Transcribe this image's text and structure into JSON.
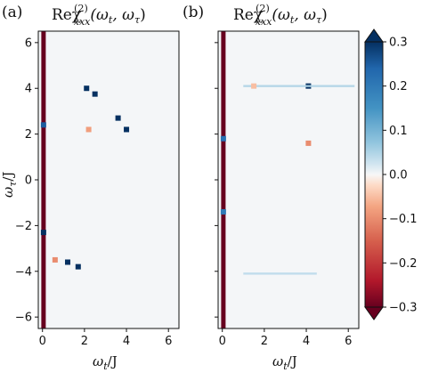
{
  "figure": {
    "panels": [
      {
        "tag": "(a)",
        "title": "Reχ",
        "title_sup": "(2)",
        "title_sub": "xxx",
        "title_args": "(ω",
        "title_args2": "t",
        "title_args3": ", ω",
        "title_args4": "τ",
        "title_args5": ")"
      },
      {
        "tag": "(b)",
        "title": "Reχ",
        "title_sup": "(2)",
        "title_sub": "xxx",
        "title_args": "(ω",
        "title_args2": "t",
        "title_args3": ", ω",
        "title_args4": "τ",
        "title_args5": ")"
      }
    ],
    "xlabel_main": "ω",
    "xlabel_sub": "t",
    "xlabel_den": "/J",
    "ylabel_main": "ω",
    "ylabel_sub": "τ",
    "ylabel_den": "/J",
    "x_ticks": [
      "0",
      "2",
      "4",
      "6"
    ],
    "y_ticks": [
      "6",
      "4",
      "2",
      "0",
      "−2",
      "−4",
      "−6"
    ],
    "colorbar_ticks": [
      "0.3",
      "0.2",
      "0.1",
      "0.0",
      "−0.1",
      "−0.2",
      "−0.3"
    ]
  },
  "chart_data": {
    "type": "heatmap",
    "colormap": "RdBu_r",
    "xlim": [
      -0.2,
      6.5
    ],
    "ylim": [
      -6.5,
      6.5
    ],
    "clim": [
      -0.3,
      0.3
    ],
    "colorbar": {
      "ticks": [
        0.3,
        0.2,
        0.1,
        0.0,
        -0.1,
        -0.2,
        -0.3
      ],
      "extend": "both"
    },
    "panels": [
      {
        "label": "(a)",
        "features": [
          {
            "kind": "column",
            "x": 0.05,
            "y_range": [
              -6.5,
              6.5
            ],
            "value": -0.3
          },
          {
            "kind": "blob",
            "x": 0.05,
            "y": 2.4,
            "value": 0.25
          },
          {
            "kind": "blob",
            "x": 0.05,
            "y": -2.3,
            "value": 0.3
          },
          {
            "kind": "blob",
            "x": 2.1,
            "y": 4.0,
            "value": 0.3
          },
          {
            "kind": "blob",
            "x": 2.5,
            "y": 3.75,
            "value": 0.3
          },
          {
            "kind": "blob",
            "x": 3.6,
            "y": 2.7,
            "value": 0.3
          },
          {
            "kind": "blob",
            "x": 4.0,
            "y": 2.2,
            "value": 0.3
          },
          {
            "kind": "blob",
            "x": 1.2,
            "y": -3.6,
            "value": 0.3
          },
          {
            "kind": "blob",
            "x": 1.7,
            "y": -3.8,
            "value": 0.3
          },
          {
            "kind": "blob",
            "x": 2.2,
            "y": 2.2,
            "value": -0.08
          },
          {
            "kind": "blob",
            "x": 0.6,
            "y": -3.5,
            "value": -0.1
          }
        ]
      },
      {
        "label": "(b)",
        "features": [
          {
            "kind": "column",
            "x": 0.05,
            "y_range": [
              -6.5,
              6.5
            ],
            "value": -0.3
          },
          {
            "kind": "blob",
            "x": 0.05,
            "y": 1.8,
            "value": 0.22
          },
          {
            "kind": "blob",
            "x": 0.05,
            "y": -1.4,
            "value": 0.2
          },
          {
            "kind": "blob",
            "x": 4.1,
            "y": 4.1,
            "value": 0.3
          },
          {
            "kind": "blob",
            "x": 4.1,
            "y": 1.6,
            "value": -0.1
          },
          {
            "kind": "hline",
            "y": 4.1,
            "x_range": [
              1.0,
              6.3
            ],
            "value": 0.05
          },
          {
            "kind": "hline",
            "y": -4.1,
            "x_range": [
              1.0,
              4.5
            ],
            "value": 0.04
          },
          {
            "kind": "blob",
            "x": 1.5,
            "y": 4.1,
            "value": -0.05
          }
        ]
      }
    ]
  }
}
